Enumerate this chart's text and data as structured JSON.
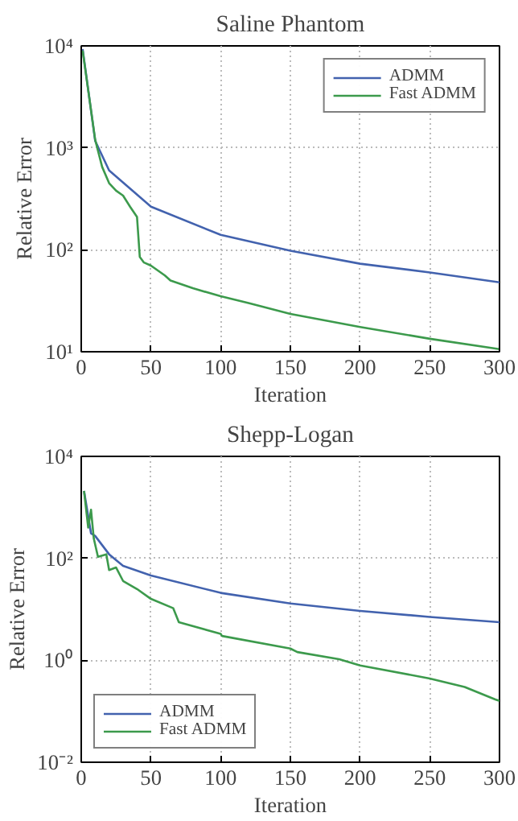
{
  "chart_data": [
    {
      "type": "line",
      "title": "Saline Phantom",
      "xlabel": "Iteration",
      "ylabel": "Relative Error",
      "log": "y",
      "grid": true,
      "legend": "top right",
      "line_style": "solid",
      "xlim": [
        0,
        300
      ],
      "xticks": [
        0,
        50,
        100,
        150,
        200,
        250,
        300
      ],
      "ylim": [
        10,
        10000
      ],
      "yticks": [
        {
          "value": 10,
          "label": "10¹"
        },
        {
          "value": 100,
          "label": "10²"
        },
        {
          "value": 1000,
          "label": "10³"
        },
        {
          "value": 10000,
          "label": "10⁴"
        }
      ],
      "series": [
        {
          "name": "ADMM",
          "color": "#4262ae",
          "x": [
            1,
            10,
            20,
            50,
            100,
            150,
            200,
            250,
            300
          ],
          "values": [
            9300,
            1170,
            600,
            265,
            140,
            98,
            73,
            60,
            48
          ]
        },
        {
          "name": "Fast ADMM",
          "color": "#3c9a4c",
          "x": [
            1,
            10,
            15,
            20,
            25,
            30,
            35,
            40,
            42,
            45,
            50,
            60,
            64,
            80,
            100,
            120,
            150,
            200,
            250,
            300
          ],
          "values": [
            9000,
            1200,
            650,
            450,
            380,
            340,
            265,
            210,
            85,
            75,
            70,
            56,
            50,
            42,
            35,
            30,
            23.5,
            17.5,
            13.4,
            10.6
          ]
        }
      ]
    },
    {
      "type": "line",
      "title": "Shepp-Logan",
      "xlabel": "Iteration",
      "ylabel": "Relative Error",
      "log": "y",
      "grid": true,
      "legend": "bottom left",
      "line_style": "solid",
      "xlim": [
        0,
        300
      ],
      "xticks": [
        0,
        50,
        100,
        150,
        200,
        250,
        300
      ],
      "ylim": [
        0.01,
        10000
      ],
      "yticks": [
        {
          "value": 0.01,
          "label": "10⁻²"
        },
        {
          "value": 1,
          "label": "10⁰"
        },
        {
          "value": 100,
          "label": "10²"
        },
        {
          "value": 10000,
          "label": "10⁴"
        }
      ],
      "series": [
        {
          "name": "ADMM",
          "color": "#4262ae",
          "x": [
            2,
            7,
            10,
            20,
            30,
            50,
            100,
            150,
            200,
            250,
            300
          ],
          "values": [
            2100,
            310,
            275,
            120,
            71,
            46,
            21,
            13,
            9.3,
            7.1,
            5.6
          ]
        },
        {
          "name": "Fast ADMM",
          "color": "#3c9a4c",
          "x": [
            2,
            5,
            7,
            9,
            12,
            18,
            20,
            25,
            30,
            40,
            50,
            66,
            70,
            100,
            101,
            150,
            155,
            185,
            200,
            250,
            275,
            297,
            300
          ],
          "values": [
            2100,
            400,
            900,
            245,
            107,
            120,
            59,
            66,
            36,
            25,
            16,
            10.5,
            5.6,
            3.3,
            3.0,
            1.7,
            1.45,
            1.05,
            0.79,
            0.44,
            0.3,
            0.17,
            0.16
          ]
        }
      ]
    }
  ]
}
